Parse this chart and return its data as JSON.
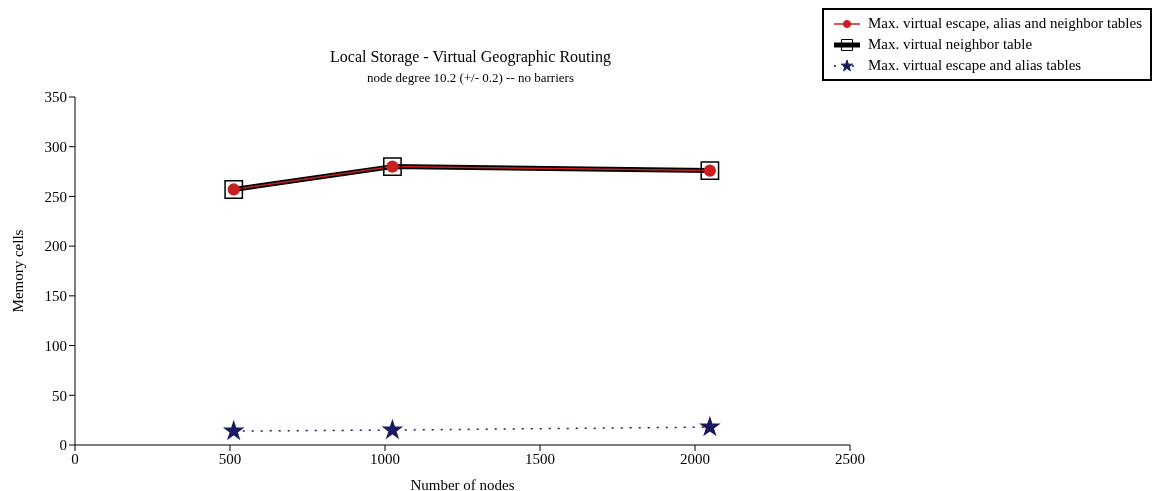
{
  "chart_data": {
    "type": "line",
    "title": "Local Storage - Virtual Geographic Routing",
    "subtitle": "node degree 10.2 (+/- 0.2) -- no barriers",
    "xlabel": "Number of nodes",
    "ylabel": "Memory cells",
    "x": [
      512,
      1024,
      2048
    ],
    "series": [
      {
        "name": "Max. virtual escape, alias and neighbor tables",
        "color": "#c82020",
        "values": [
          257,
          280,
          276
        ],
        "marker": "circle",
        "line_style": "solid"
      },
      {
        "name": "Max. virtual neighbor table",
        "color": "#000000",
        "values": [
          257,
          280,
          276
        ],
        "marker": "square",
        "line_style": "solid"
      },
      {
        "name": "Max. virtual escape and alias tables",
        "color": "#1a1a60",
        "values": [
          14,
          15,
          18
        ],
        "marker": "star",
        "line_style": "dotted"
      }
    ],
    "xlim": [
      0,
      2500
    ],
    "xticks": [
      0,
      500,
      1000,
      1500,
      2000,
      2500
    ],
    "ylim": [
      0,
      350
    ],
    "yticks": [
      0,
      50,
      100,
      150,
      200,
      250,
      300,
      350
    ],
    "grid": false,
    "legend": "top right"
  }
}
